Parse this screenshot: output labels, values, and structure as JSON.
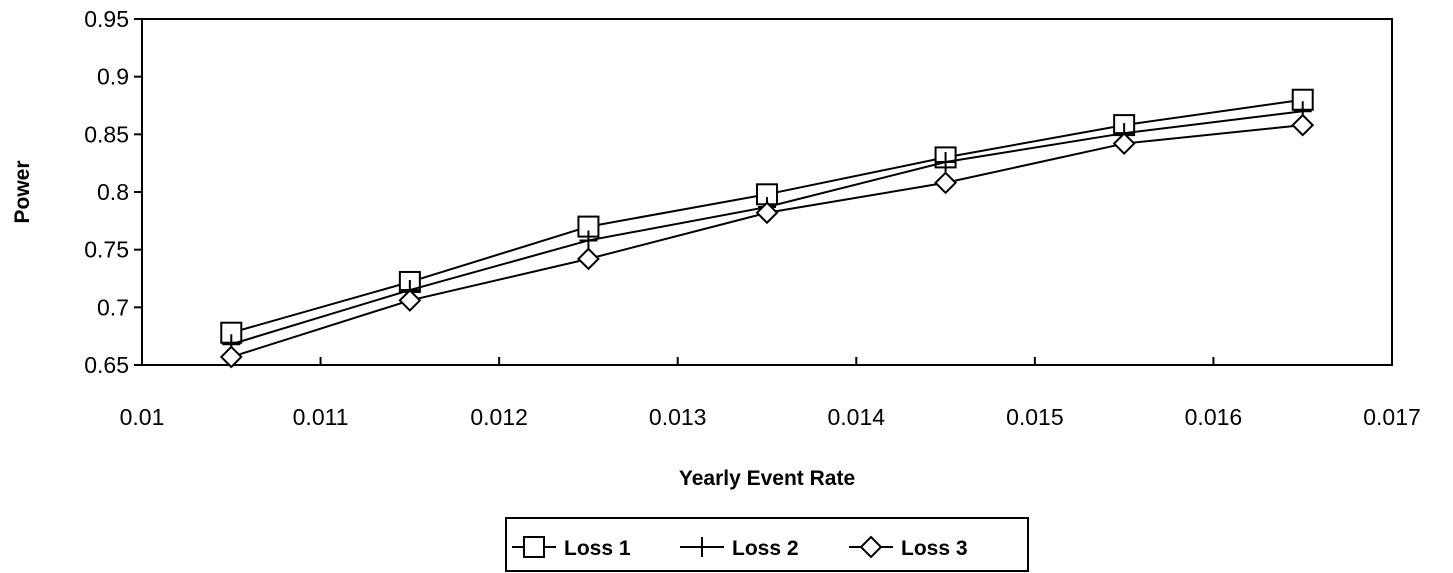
{
  "chart_data": {
    "type": "line",
    "title": "",
    "xlabel": "Yearly Event Rate",
    "ylabel": "Power",
    "xlim": [
      0.01,
      0.017
    ],
    "ylim": [
      0.65,
      0.95
    ],
    "x_ticks": [
      "0.01",
      "0.011",
      "0.012",
      "0.013",
      "0.014",
      "0.015",
      "0.016",
      "0.017"
    ],
    "y_ticks": [
      "0.65",
      "0.7",
      "0.75",
      "0.8",
      "0.85",
      "0.9",
      "0.95"
    ],
    "grid": false,
    "legend_position": "bottom",
    "x": [
      0.0105,
      0.0115,
      0.0125,
      0.0135,
      0.0145,
      0.0155,
      0.0165
    ],
    "series": [
      {
        "name": "Loss 1",
        "marker": "square",
        "values": [
          0.678,
          0.722,
          0.77,
          0.798,
          0.83,
          0.858,
          0.88
        ]
      },
      {
        "name": "Loss 2",
        "marker": "plus",
        "values": [
          0.668,
          0.715,
          0.758,
          0.787,
          0.826,
          0.851,
          0.87
        ]
      },
      {
        "name": "Loss 3",
        "marker": "diamond",
        "values": [
          0.657,
          0.706,
          0.742,
          0.782,
          0.808,
          0.842,
          0.858
        ]
      }
    ],
    "colors": {
      "line": "#000000",
      "background": "#ffffff"
    }
  }
}
